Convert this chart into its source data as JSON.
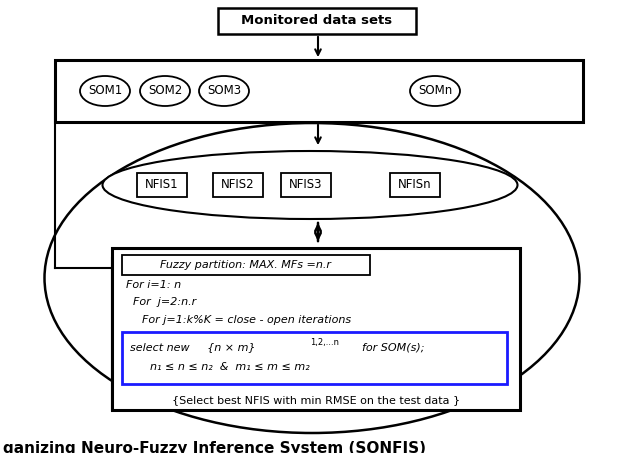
{
  "top_box_text": "Monitored data sets",
  "som_labels": [
    "SOM1",
    "SOM2",
    "SOM3",
    "SOMn"
  ],
  "nfis_labels": [
    "NFIS1",
    "NFIS2",
    "NFIS3",
    "NFISn"
  ],
  "fuzzy_title": "Fuzzy partition: MAX. MFs =n.r",
  "algo_line1": "For i=1: n",
  "algo_line2": "For  j=2:n.r",
  "algo_line3": "For j=1:k%K = close - open iterations",
  "inner_box_line1": "select new     {n x m}",
  "inner_box_sup": "1,2,...n",
  "inner_box_line1b": "   for SOM(s);",
  "inner_box_line2": "n₁ ≤ n ≤ n₂  &  m₁ ≤ m ≤ m₂",
  "bottom_text": "{Select best NFIS with min RMSE on the test data }",
  "caption": "ganizing Neuro-Fuzzy Inference System (SONFIS)",
  "bg_color": "#ffffff",
  "line_color": "#000000",
  "inner_box_border": "#1a1aff",
  "text_color": "#000000"
}
